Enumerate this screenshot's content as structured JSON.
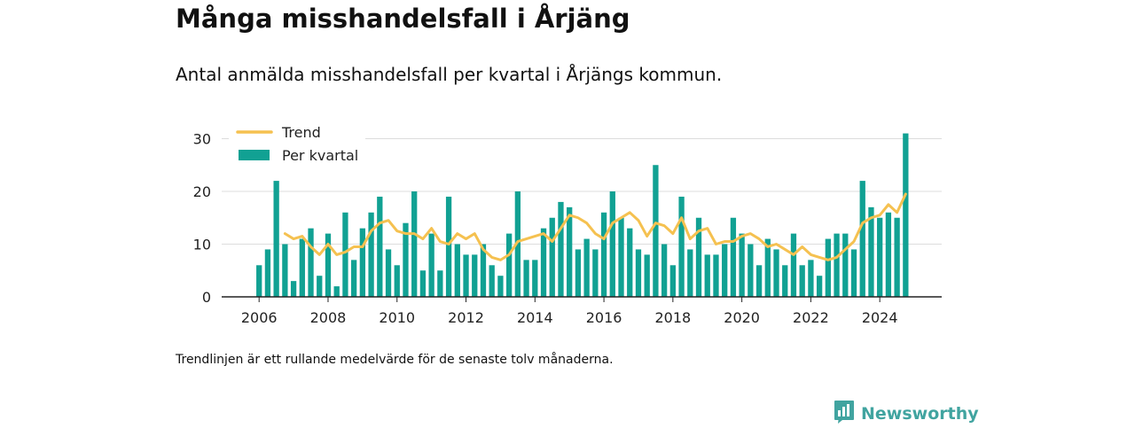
{
  "header": {
    "title": "Många misshandelsfall i Årjäng",
    "subtitle": "Antal anmälda misshandelsfall per kvartal i Årjängs kommun."
  },
  "footer": {
    "note": "Trendlinjen är ett rullande medelvärde för de senaste tolv månaderna.",
    "brand": "Newsworthy"
  },
  "colors": {
    "bar": "#11a193",
    "trend": "#f5c150",
    "brand": "#41a4a0",
    "grid": "#dddddd",
    "axis": "#222222"
  },
  "icons": {
    "brand_logo": "bar-chart-speech-bubble-icon"
  },
  "chart_data": {
    "type": "bar",
    "x_start": "2006-Q1",
    "ylim": [
      0,
      32
    ],
    "y_ticks": [
      0,
      10,
      20,
      30
    ],
    "x_ticks": [
      "2006",
      "2008",
      "2010",
      "2012",
      "2014",
      "2016",
      "2018",
      "2020",
      "2022",
      "2024"
    ],
    "grid": true,
    "legend_position": "top-left",
    "series": [
      {
        "name": "Per kvartal",
        "type": "bar",
        "values": [
          6,
          9,
          22,
          10,
          3,
          11,
          13,
          4,
          12,
          2,
          16,
          7,
          13,
          16,
          19,
          9,
          6,
          14,
          20,
          5,
          12,
          5,
          19,
          10,
          8,
          8,
          10,
          6,
          4,
          12,
          20,
          7,
          7,
          13,
          15,
          18,
          17,
          9,
          11,
          9,
          16,
          20,
          15,
          13,
          9,
          8,
          25,
          10,
          6,
          19,
          9,
          15,
          8,
          8,
          10,
          15,
          12,
          10,
          6,
          11,
          9,
          6,
          12,
          6,
          7,
          4,
          11,
          12,
          12,
          9,
          22,
          17,
          15,
          16,
          15,
          31
        ]
      },
      {
        "name": "Trend",
        "type": "line",
        "values": [
          null,
          null,
          null,
          12,
          11,
          11.5,
          9.5,
          8,
          10,
          8,
          8.5,
          9.5,
          9.5,
          12.5,
          14,
          14.5,
          12.5,
          12,
          12,
          11,
          13,
          10.5,
          10,
          12,
          11,
          12,
          9,
          7.5,
          7,
          8,
          10.5,
          11,
          11.5,
          12,
          10.5,
          13,
          15.5,
          15,
          14,
          12,
          11,
          14,
          15,
          16,
          14.5,
          11.5,
          14,
          13.5,
          12,
          15,
          11,
          12.5,
          13,
          10,
          10.5,
          10.5,
          11.5,
          12,
          11,
          9.5,
          10,
          9,
          8,
          9.5,
          8,
          7.5,
          7,
          7.5,
          9,
          10.5,
          14,
          15,
          15.5,
          17.5,
          16,
          19.5
        ]
      }
    ]
  }
}
